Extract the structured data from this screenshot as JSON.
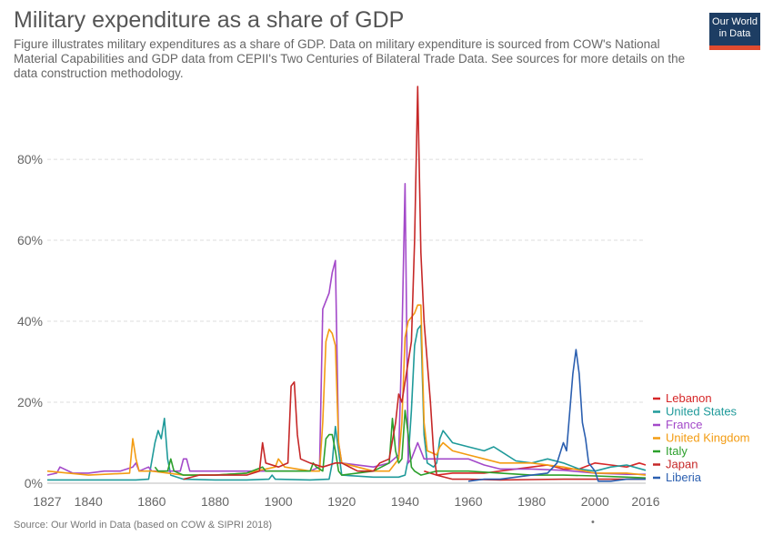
{
  "header": {
    "title": "Military expenditure as a share of GDP",
    "subtitle": "Figure illustrates military expenditures as a share of GDP. Data on military expenditure is sourced from COW's National Material Capabilities and GDP data from CEPII's Two Centuries of Bilateral Trade Data. See sources for more details on the data construction methodology."
  },
  "logo": {
    "line1": "Our World",
    "line2": "in Data",
    "bg": "#1d3d63",
    "accent": "#e04b2f"
  },
  "footer": {
    "source": "Source: Our World in Data (based on COW & SIPRI 2018)",
    "dot": "•"
  },
  "chart_data": {
    "type": "line",
    "title": "Military expenditure as a share of GDP",
    "xlabel": "",
    "ylabel": "",
    "xlim": [
      1827,
      2016
    ],
    "ylim": [
      0,
      98
    ],
    "xticks": [
      1827,
      1840,
      1860,
      1880,
      1900,
      1920,
      1940,
      1960,
      1980,
      2000,
      2016
    ],
    "yticks": [
      0,
      20,
      40,
      60,
      80
    ],
    "ytick_labels": [
      "0%",
      "20%",
      "40%",
      "60%",
      "80%"
    ],
    "grid": "horizontal dashed",
    "legend_position": "right",
    "series": [
      {
        "name": "Lebanon",
        "color": "#d62728",
        "points": [
          [
            1946,
            3
          ],
          [
            1950,
            2
          ],
          [
            1955,
            2.5
          ],
          [
            1960,
            2.5
          ],
          [
            1965,
            2.5
          ],
          [
            1970,
            3
          ],
          [
            1975,
            3.5
          ],
          [
            1980,
            4
          ],
          [
            1985,
            4.5
          ],
          [
            1990,
            3.5
          ],
          [
            1995,
            3.5
          ],
          [
            2000,
            5
          ],
          [
            2005,
            4.5
          ],
          [
            2010,
            4
          ],
          [
            2014,
            5
          ],
          [
            2016,
            4.5
          ]
        ]
      },
      {
        "name": "United States",
        "color": "#1f9a9a",
        "points": [
          [
            1827,
            0.8
          ],
          [
            1840,
            0.8
          ],
          [
            1855,
            0.8
          ],
          [
            1859,
            1
          ],
          [
            1861,
            10
          ],
          [
            1862,
            13
          ],
          [
            1863,
            11
          ],
          [
            1864,
            16
          ],
          [
            1865,
            6
          ],
          [
            1866,
            2
          ],
          [
            1870,
            1
          ],
          [
            1880,
            0.8
          ],
          [
            1890,
            0.8
          ],
          [
            1897,
            1
          ],
          [
            1898,
            2
          ],
          [
            1899,
            1
          ],
          [
            1910,
            0.8
          ],
          [
            1916,
            1
          ],
          [
            1917,
            5
          ],
          [
            1918,
            14
          ],
          [
            1919,
            8
          ],
          [
            1920,
            2
          ],
          [
            1930,
            1.5
          ],
          [
            1938,
            1.5
          ],
          [
            1940,
            2
          ],
          [
            1941,
            6
          ],
          [
            1942,
            18
          ],
          [
            1943,
            34
          ],
          [
            1944,
            38
          ],
          [
            1945,
            39
          ],
          [
            1946,
            12
          ],
          [
            1947,
            5
          ],
          [
            1949,
            4
          ],
          [
            1950,
            5
          ],
          [
            1951,
            11
          ],
          [
            1952,
            13
          ],
          [
            1953,
            12
          ],
          [
            1955,
            10
          ],
          [
            1960,
            9
          ],
          [
            1965,
            8
          ],
          [
            1968,
            9
          ],
          [
            1970,
            8
          ],
          [
            1975,
            5.5
          ],
          [
            1980,
            5
          ],
          [
            1985,
            6
          ],
          [
            1990,
            5
          ],
          [
            1995,
            3.5
          ],
          [
            2000,
            3
          ],
          [
            2005,
            4
          ],
          [
            2010,
            4.5
          ],
          [
            2016,
            3.2
          ]
        ]
      },
      {
        "name": "France",
        "color": "#a349c9",
        "points": [
          [
            1827,
            2
          ],
          [
            1830,
            2.5
          ],
          [
            1831,
            4
          ],
          [
            1835,
            2.5
          ],
          [
            1840,
            2.5
          ],
          [
            1845,
            3
          ],
          [
            1850,
            3
          ],
          [
            1854,
            4
          ],
          [
            1855,
            5
          ],
          [
            1856,
            3
          ],
          [
            1859,
            4
          ],
          [
            1860,
            3
          ],
          [
            1865,
            3
          ],
          [
            1869,
            3
          ],
          [
            1870,
            6
          ],
          [
            1871,
            6
          ],
          [
            1872,
            3
          ],
          [
            1880,
            3
          ],
          [
            1890,
            3
          ],
          [
            1900,
            3
          ],
          [
            1910,
            3
          ],
          [
            1913,
            4
          ],
          [
            1914,
            43
          ],
          [
            1915,
            45
          ],
          [
            1916,
            47
          ],
          [
            1917,
            52
          ],
          [
            1918,
            55
          ],
          [
            1919,
            10
          ],
          [
            1920,
            5
          ],
          [
            1930,
            4
          ],
          [
            1935,
            5
          ],
          [
            1938,
            7
          ],
          [
            1939,
            35
          ],
          [
            1940,
            74
          ],
          [
            1941,
            5
          ],
          [
            1942,
            6
          ],
          [
            1944,
            10
          ],
          [
            1945,
            8
          ],
          [
            1946,
            6
          ],
          [
            1950,
            6
          ],
          [
            1955,
            6
          ],
          [
            1960,
            6
          ],
          [
            1965,
            4.5
          ],
          [
            1970,
            3.5
          ],
          [
            1980,
            3.5
          ],
          [
            1990,
            3.2
          ],
          [
            2000,
            2.5
          ],
          [
            2010,
            2.2
          ],
          [
            2016,
            2.2
          ]
        ]
      },
      {
        "name": "United Kingdom",
        "color": "#f39c12",
        "points": [
          [
            1827,
            3
          ],
          [
            1840,
            2
          ],
          [
            1853,
            2.5
          ],
          [
            1854,
            11
          ],
          [
            1855,
            6
          ],
          [
            1856,
            3
          ],
          [
            1860,
            3
          ],
          [
            1870,
            2
          ],
          [
            1880,
            2
          ],
          [
            1890,
            2.5
          ],
          [
            1899,
            4
          ],
          [
            1900,
            6
          ],
          [
            1901,
            5
          ],
          [
            1902,
            4
          ],
          [
            1910,
            3
          ],
          [
            1913,
            3
          ],
          [
            1914,
            15
          ],
          [
            1915,
            35
          ],
          [
            1916,
            38
          ],
          [
            1917,
            37
          ],
          [
            1918,
            34
          ],
          [
            1919,
            10
          ],
          [
            1920,
            5
          ],
          [
            1930,
            3
          ],
          [
            1935,
            3
          ],
          [
            1938,
            6
          ],
          [
            1939,
            15
          ],
          [
            1940,
            36
          ],
          [
            1941,
            40
          ],
          [
            1942,
            41
          ],
          [
            1943,
            42
          ],
          [
            1944,
            44
          ],
          [
            1945,
            44
          ],
          [
            1946,
            15
          ],
          [
            1947,
            8
          ],
          [
            1950,
            7
          ],
          [
            1951,
            9
          ],
          [
            1952,
            10
          ],
          [
            1955,
            8
          ],
          [
            1960,
            7
          ],
          [
            1965,
            6
          ],
          [
            1970,
            5
          ],
          [
            1980,
            5
          ],
          [
            1990,
            4
          ],
          [
            2000,
            2.5
          ],
          [
            2010,
            2.5
          ],
          [
            2016,
            2
          ]
        ]
      },
      {
        "name": "Italy",
        "color": "#2ca02c",
        "points": [
          [
            1861,
            4
          ],
          [
            1862,
            3
          ],
          [
            1865,
            3
          ],
          [
            1866,
            6
          ],
          [
            1867,
            3
          ],
          [
            1870,
            2
          ],
          [
            1880,
            2
          ],
          [
            1890,
            2.5
          ],
          [
            1895,
            4
          ],
          [
            1896,
            3
          ],
          [
            1900,
            3
          ],
          [
            1910,
            3
          ],
          [
            1911,
            5
          ],
          [
            1912,
            4
          ],
          [
            1914,
            3
          ],
          [
            1915,
            11
          ],
          [
            1916,
            12
          ],
          [
            1917,
            12
          ],
          [
            1918,
            8
          ],
          [
            1919,
            3
          ],
          [
            1920,
            2
          ],
          [
            1930,
            3
          ],
          [
            1935,
            5
          ],
          [
            1936,
            16
          ],
          [
            1937,
            8
          ],
          [
            1938,
            5
          ],
          [
            1939,
            6
          ],
          [
            1940,
            18
          ],
          [
            1941,
            12
          ],
          [
            1942,
            4
          ],
          [
            1943,
            3
          ],
          [
            1945,
            2
          ],
          [
            1950,
            3
          ],
          [
            1960,
            3
          ],
          [
            1970,
            2.5
          ],
          [
            1980,
            2
          ],
          [
            1990,
            2
          ],
          [
            2000,
            1.8
          ],
          [
            2010,
            1.5
          ],
          [
            2016,
            1.3
          ]
        ]
      },
      {
        "name": "Japan",
        "color": "#c62828",
        "points": [
          [
            1870,
            1
          ],
          [
            1875,
            2
          ],
          [
            1880,
            2
          ],
          [
            1885,
            2
          ],
          [
            1890,
            2
          ],
          [
            1894,
            3
          ],
          [
            1895,
            10
          ],
          [
            1896,
            5
          ],
          [
            1900,
            4
          ],
          [
            1903,
            5
          ],
          [
            1904,
            24
          ],
          [
            1905,
            25
          ],
          [
            1906,
            12
          ],
          [
            1907,
            6
          ],
          [
            1910,
            5
          ],
          [
            1914,
            4
          ],
          [
            1918,
            5
          ],
          [
            1920,
            5
          ],
          [
            1925,
            3
          ],
          [
            1930,
            3
          ],
          [
            1932,
            5
          ],
          [
            1935,
            6
          ],
          [
            1937,
            15
          ],
          [
            1938,
            22
          ],
          [
            1939,
            20
          ],
          [
            1940,
            25
          ],
          [
            1941,
            30
          ],
          [
            1942,
            35
          ],
          [
            1943,
            60
          ],
          [
            1944,
            98
          ],
          [
            1945,
            57
          ],
          [
            1946,
            40
          ],
          [
            1947,
            30
          ],
          [
            1948,
            20
          ],
          [
            1949,
            8
          ],
          [
            1950,
            2
          ],
          [
            1955,
            1
          ],
          [
            1960,
            1
          ],
          [
            1970,
            0.8
          ],
          [
            1980,
            0.9
          ],
          [
            1990,
            1
          ],
          [
            2000,
            1
          ],
          [
            2010,
            1
          ],
          [
            2016,
            1
          ]
        ]
      },
      {
        "name": "Liberia",
        "color": "#2b5fb0",
        "points": [
          [
            1960,
            0.5
          ],
          [
            1965,
            1
          ],
          [
            1970,
            1
          ],
          [
            1975,
            1.5
          ],
          [
            1980,
            2
          ],
          [
            1985,
            2.5
          ],
          [
            1988,
            5
          ],
          [
            1990,
            10
          ],
          [
            1991,
            8
          ],
          [
            1993,
            27
          ],
          [
            1994,
            33
          ],
          [
            1995,
            27
          ],
          [
            1996,
            15
          ],
          [
            1997,
            11
          ],
          [
            1998,
            5
          ],
          [
            1999,
            4
          ],
          [
            2000,
            3
          ],
          [
            2001,
            0.5
          ],
          [
            2005,
            0.5
          ],
          [
            2010,
            1
          ],
          [
            2016,
            1
          ]
        ]
      }
    ]
  }
}
